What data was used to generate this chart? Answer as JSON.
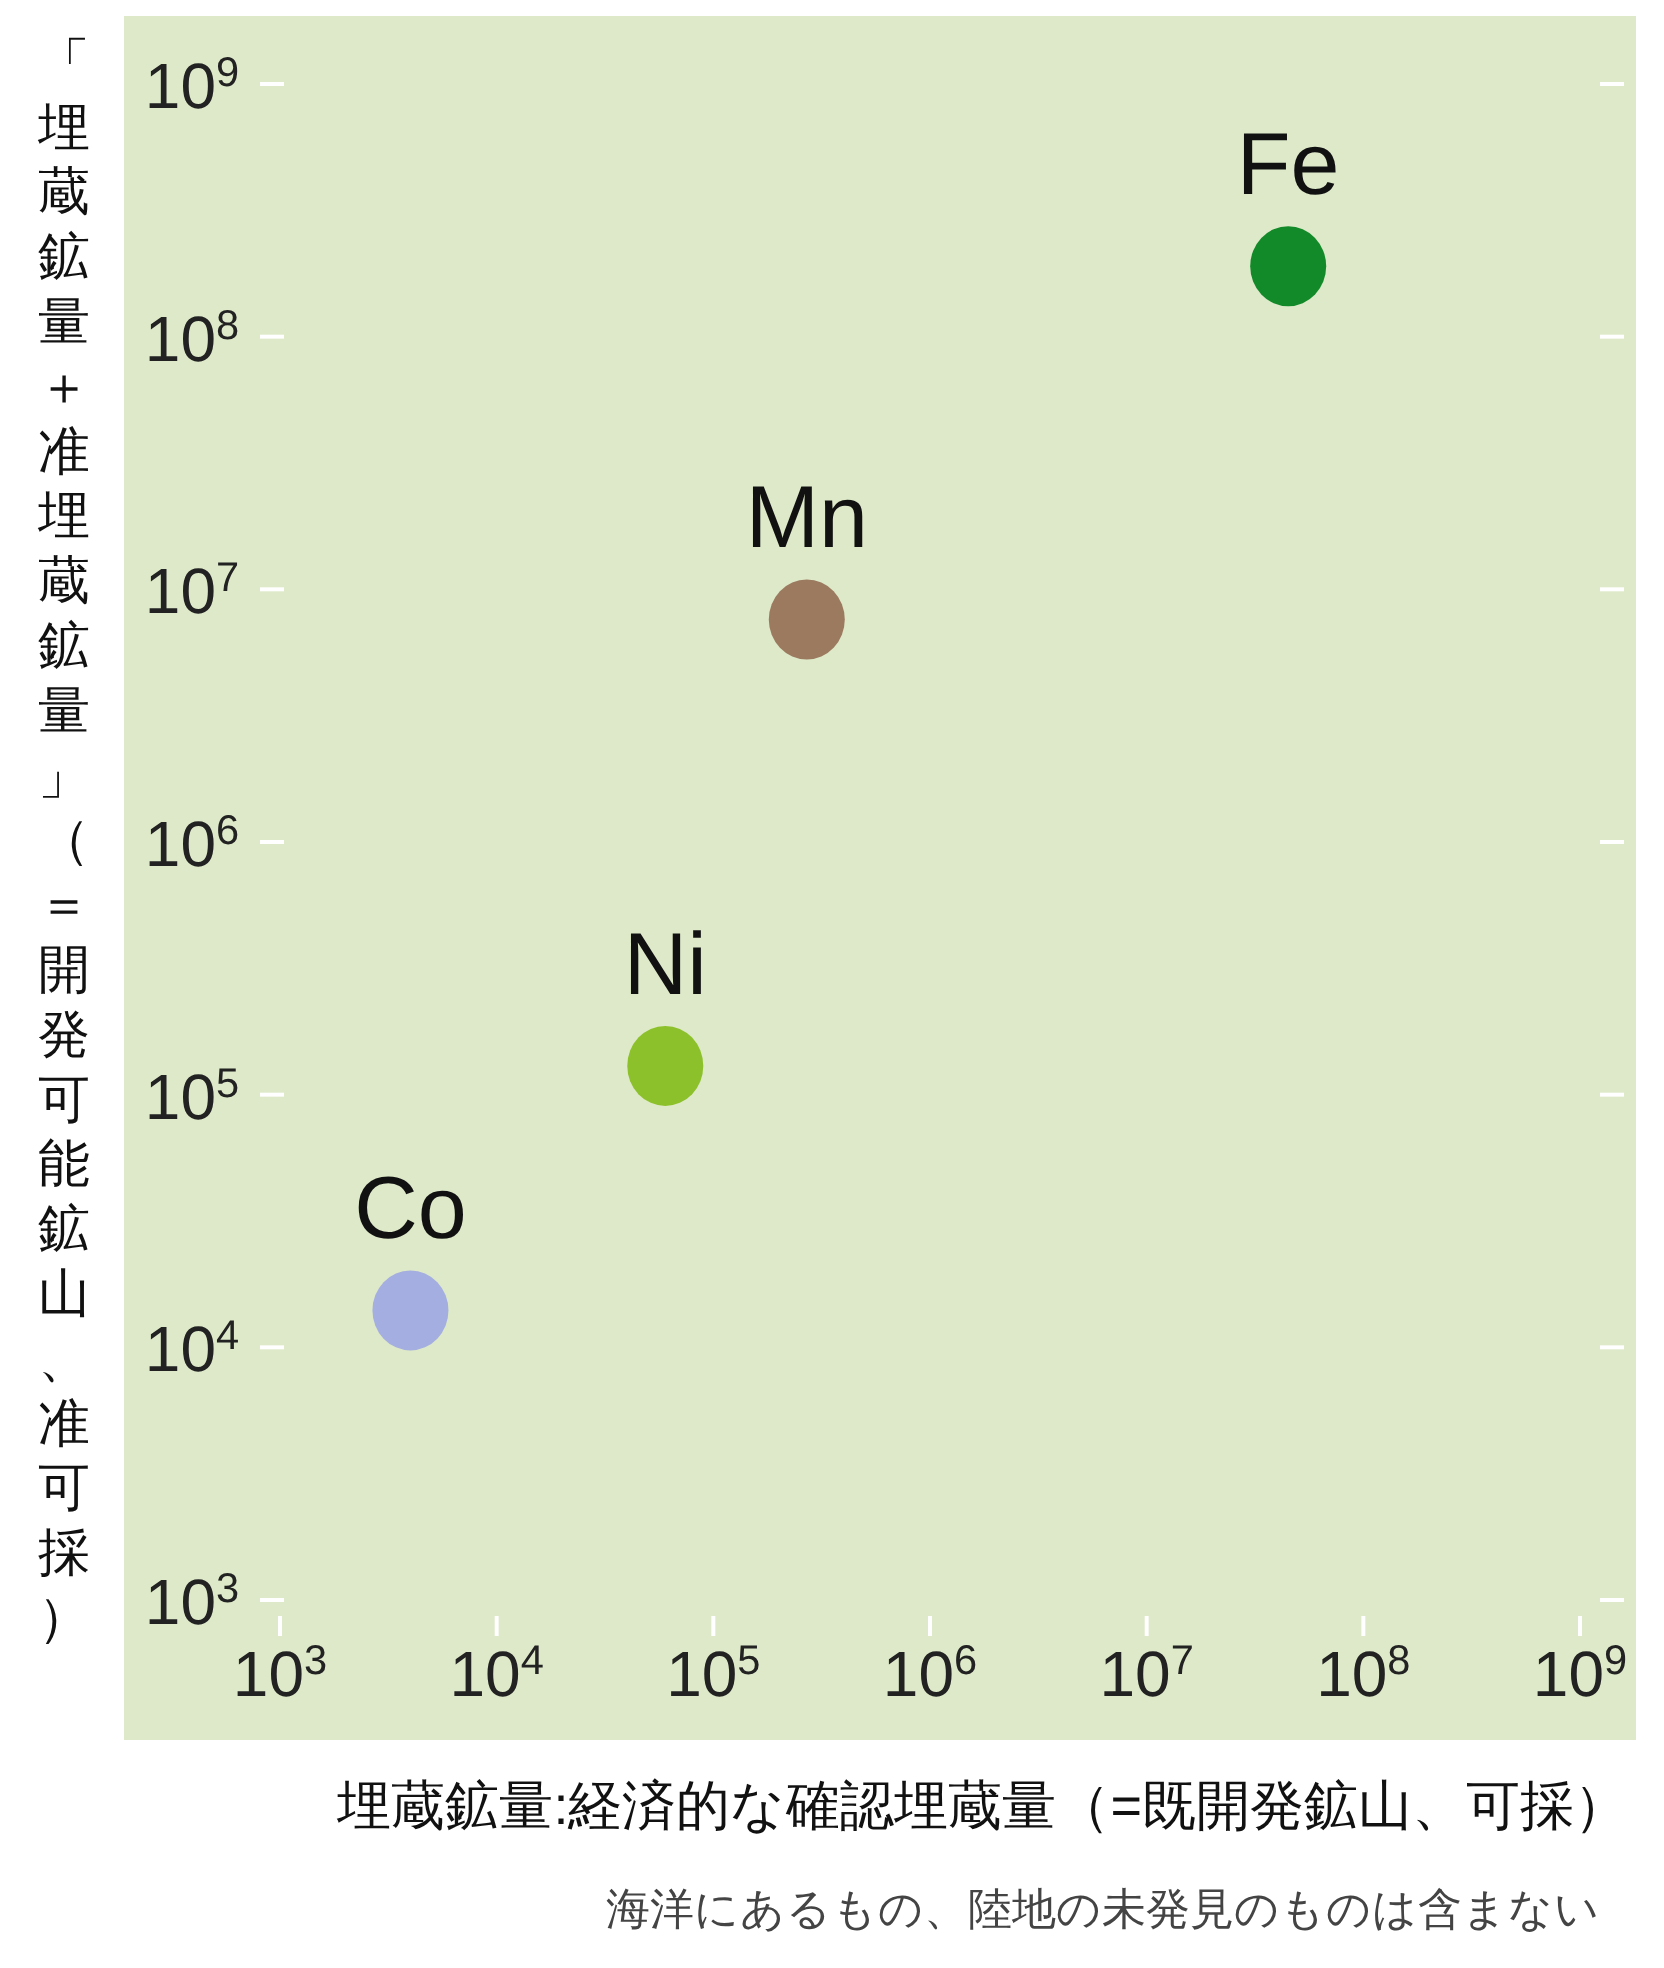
{
  "chart_data": {
    "type": "scatter",
    "xlabel": "埋蔵鉱量:経済的な確認埋蔵量（=既開発鉱山、可採）",
    "ylabel": "「埋蔵鉱量＋准埋蔵鉱量」（＝開発可能鉱山、准可採）",
    "annotations": [
      "海洋にあるもの、陸地の未発見のものは含まない"
    ],
    "log": "xy",
    "marker": "circle",
    "grid": false,
    "xlim": [
      1000,
      1000000000
    ],
    "ylim": [
      1000,
      1000000000
    ],
    "xticks": [
      {
        "value": 1000,
        "label": "10$^{3}$"
      },
      {
        "value": 10000,
        "label": "10$^{4}$"
      },
      {
        "value": 100000,
        "label": "10$^{5}$"
      },
      {
        "value": 1000000,
        "label": "10$^{6}$"
      },
      {
        "value": 10000000,
        "label": "10$^{7}$"
      },
      {
        "value": 100000000,
        "label": "10$^{8}$"
      },
      {
        "value": 1000000000,
        "label": "10$^{9}$"
      }
    ],
    "yticks": [
      {
        "value": 1000,
        "label": "10$^{3}$"
      },
      {
        "value": 10000,
        "label": "10$^{4}$"
      },
      {
        "value": 100000,
        "label": "10$^{5}$"
      },
      {
        "value": 1000000,
        "label": "10$^{6}$"
      },
      {
        "value": 10000000,
        "label": "10$^{7}$"
      },
      {
        "value": 100000000,
        "label": "10$^{8}$"
      },
      {
        "value": 1000000000,
        "label": "10$^{9}$"
      }
    ],
    "series": [
      {
        "name": "Fe",
        "color": "#138a2a",
        "x": [
          45000000
        ],
        "values": [
          190000000
        ]
      },
      {
        "name": "Mn",
        "color": "#9b7a60",
        "x": [
          270000
        ],
        "values": [
          7600000
        ]
      },
      {
        "name": "Ni",
        "color": "#8dc12b",
        "x": [
          60000
        ],
        "values": [
          130000
        ]
      },
      {
        "name": "Co",
        "color": "#a5aee0",
        "x": [
          4000
        ],
        "values": [
          14000
        ]
      }
    ]
  }
}
